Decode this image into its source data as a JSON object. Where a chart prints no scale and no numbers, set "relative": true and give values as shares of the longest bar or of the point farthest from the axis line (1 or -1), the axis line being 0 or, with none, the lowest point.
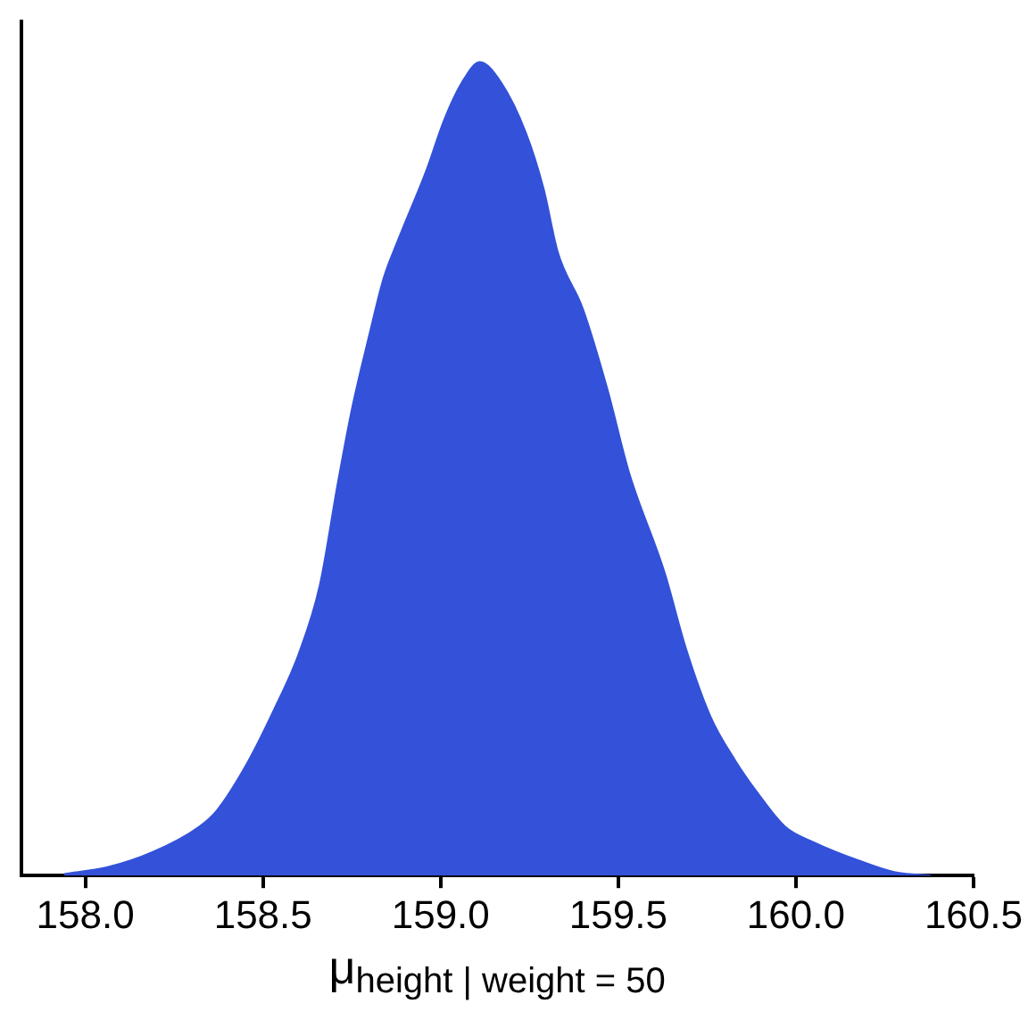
{
  "chart_data": {
    "type": "area",
    "xlabel": "μ$_{height | weight = 50}$",
    "relative": true,
    "color": "#3352d9",
    "x": [
      157.94,
      158.06,
      158.19,
      158.32,
      158.37,
      158.45,
      158.53,
      158.6,
      158.66,
      158.71,
      158.75,
      158.8,
      158.84,
      158.88,
      158.96,
      159.01,
      159.06,
      159.11,
      159.17,
      159.24,
      159.29,
      159.33,
      159.4,
      159.47,
      159.53,
      159.63,
      159.69,
      159.76,
      159.83,
      159.89,
      159.97,
      160.05,
      160.18,
      160.28,
      160.38
    ],
    "values": [
      0.002,
      0.01,
      0.029,
      0.06,
      0.08,
      0.134,
      0.203,
      0.272,
      0.357,
      0.481,
      0.573,
      0.666,
      0.735,
      0.781,
      0.867,
      0.929,
      0.975,
      1,
      0.975,
      0.913,
      0.844,
      0.766,
      0.697,
      0.597,
      0.496,
      0.373,
      0.28,
      0.195,
      0.141,
      0.103,
      0.06,
      0.041,
      0.018,
      0.004,
      0
    ],
    "xlim": [
      157.82,
      160.5
    ],
    "xticks": [
      {
        "value": 158,
        "label": "158.0"
      },
      158.5,
      {
        "value": 159,
        "label": "159.0"
      },
      159.5,
      {
        "value": 160,
        "label": "160.0"
      },
      160.5
    ]
  }
}
